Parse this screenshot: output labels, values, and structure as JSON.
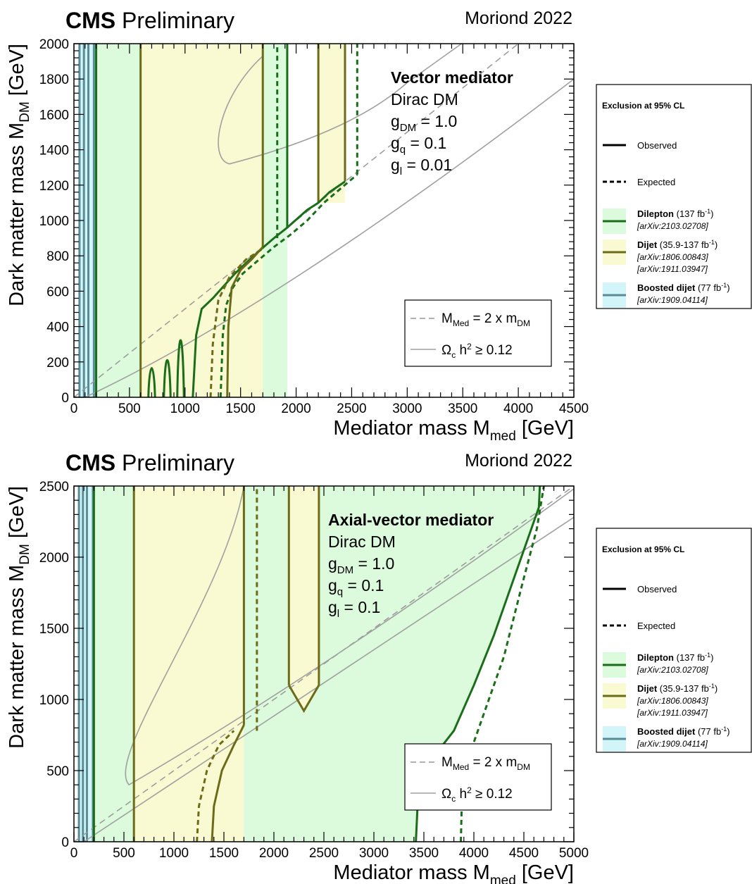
{
  "chart_data": [
    {
      "type": "line",
      "header": {
        "experiment": "CMS",
        "status": "Preliminary",
        "campaign": "Moriond 2022"
      },
      "xlabel": "Mediator mass M",
      "xlabel_sub": "med",
      "xlabel_unit": "[GeV]",
      "ylabel": "Dark matter mass M",
      "ylabel_sub": "DM",
      "ylabel_unit": "[GeV]",
      "xlim": [
        0,
        4500
      ],
      "ylim": [
        0,
        2000
      ],
      "x_ticks": [
        0,
        500,
        1000,
        1500,
        2000,
        2500,
        3000,
        3500,
        4000,
        4500
      ],
      "y_ticks": [
        0,
        200,
        400,
        600,
        800,
        1000,
        1200,
        1400,
        1600,
        1800,
        2000
      ],
      "info": {
        "title": "Vector mediator",
        "line1": "Dirac DM",
        "g_dm": "g",
        "g_dm_sub": "DM",
        "g_dm_val": "= 1.0",
        "g_q": "g",
        "g_q_sub": "q",
        "g_q_val": "= 0.1",
        "g_l": "g",
        "g_l_sub": "l",
        "g_l_val": "= 0.01"
      },
      "inner_legend": {
        "diag_label": "M",
        "diag_sub1": "Med",
        "diag_mid": "= 2 x m",
        "diag_sub2": "DM",
        "relic_label": "Ω",
        "relic_sub": "c",
        "relic_mid": "h",
        "relic_sup": "2",
        "relic_tail": "≥ 0.12"
      },
      "series": [
        {
          "name": "Dilepton observed",
          "style": "solid",
          "color": "#1a6e1a",
          "points": [
            [
              1070,
              0
            ],
            [
              1100,
              350
            ],
            [
              1150,
              500
            ],
            [
              1250,
              560
            ],
            [
              1350,
              630
            ],
            [
              1450,
              700
            ],
            [
              1550,
              760
            ],
            [
              1690,
              840
            ],
            [
              1800,
              900
            ],
            [
              1920,
              960
            ],
            [
              2100,
              1060
            ],
            [
              2200,
              1100
            ],
            [
              2300,
              1160
            ],
            [
              2440,
              1220
            ]
          ]
        },
        {
          "name": "Dilepton expected",
          "style": "dashed",
          "color": "#1a6e1a",
          "points": [
            [
              1320,
              0
            ],
            [
              1340,
              350
            ],
            [
              1370,
              520
            ],
            [
              1430,
              620
            ],
            [
              1520,
              700
            ],
            [
              1650,
              770
            ],
            [
              1800,
              850
            ],
            [
              1950,
              920
            ],
            [
              2100,
              1000
            ],
            [
              2250,
              1100
            ],
            [
              2400,
              1180
            ],
            [
              2550,
              1260
            ]
          ]
        },
        {
          "name": "Dijet observed",
          "style": "solid",
          "color": "#6b6b1a",
          "points": [
            [
              1380,
              0
            ],
            [
              1390,
              400
            ],
            [
              1420,
              620
            ],
            [
              1500,
              720
            ],
            [
              1600,
              780
            ],
            [
              1700,
              850
            ]
          ]
        },
        {
          "name": "Dijet expected",
          "style": "dashed",
          "color": "#6b6b1a",
          "points": [
            [
              1230,
              0
            ],
            [
              1250,
              300
            ],
            [
              1300,
              550
            ],
            [
              1400,
              680
            ],
            [
              1550,
              780
            ],
            [
              1700,
              840
            ]
          ]
        }
      ],
      "vertical_bounds": {
        "dilepton_obs": [
          200,
          1920
        ],
        "dilepton_exp": [
          1830,
          2550
        ],
        "dijet_obs": [
          600,
          1700,
          2200,
          2450
        ],
        "boosted_lines": [
          50,
          90,
          130,
          180
        ]
      }
    },
    {
      "type": "line",
      "header": {
        "experiment": "CMS",
        "status": "Preliminary",
        "campaign": "Moriond 2022"
      },
      "xlabel": "Mediator mass M",
      "xlabel_sub": "med",
      "xlabel_unit": "[GeV]",
      "ylabel": "Dark matter mass M",
      "ylabel_sub": "DM",
      "ylabel_unit": "[GeV]",
      "xlim": [
        0,
        5000
      ],
      "ylim": [
        0,
        2500
      ],
      "x_ticks": [
        0,
        500,
        1000,
        1500,
        2000,
        2500,
        3000,
        3500,
        4000,
        4500,
        5000
      ],
      "y_ticks": [
        0,
        500,
        1000,
        1500,
        2000,
        2500
      ],
      "info": {
        "title": "Axial-vector mediator",
        "line1": "Dirac DM",
        "g_dm": "g",
        "g_dm_sub": "DM",
        "g_dm_val": "= 1.0",
        "g_q": "g",
        "g_q_sub": "q",
        "g_q_val": "= 0.1",
        "g_l": "g",
        "g_l_sub": "l",
        "g_l_val": "= 0.1"
      },
      "inner_legend": {
        "diag_label": "M",
        "diag_sub1": "Med",
        "diag_mid": "= 2 x m",
        "diag_sub2": "DM",
        "relic_label": "Ω",
        "relic_sub": "c",
        "relic_mid": "h",
        "relic_sup": "2",
        "relic_tail": "≥ 0.12"
      },
      "series": [
        {
          "name": "Dilepton observed",
          "style": "solid",
          "color": "#1a6e1a",
          "points": [
            [
              3420,
              0
            ],
            [
              3440,
              300
            ],
            [
              3600,
              600
            ],
            [
              3800,
              780
            ],
            [
              4000,
              1100
            ],
            [
              4200,
              1450
            ],
            [
              4400,
              1850
            ],
            [
              4550,
              2150
            ],
            [
              4650,
              2350
            ],
            [
              4660,
              2500
            ]
          ]
        },
        {
          "name": "Dilepton expected",
          "style": "dashed",
          "color": "#1a6e1a",
          "points": [
            [
              3870,
              0
            ],
            [
              3880,
              300
            ],
            [
              3950,
              600
            ],
            [
              4100,
              900
            ],
            [
              4300,
              1300
            ],
            [
              4480,
              1800
            ],
            [
              4630,
              2200
            ],
            [
              4700,
              2500
            ]
          ]
        },
        {
          "name": "Dijet observed",
          "style": "solid",
          "color": "#6b6b1a",
          "points": [
            [
              1380,
              0
            ],
            [
              1400,
              250
            ],
            [
              1480,
              500
            ],
            [
              1600,
              680
            ],
            [
              1700,
              820
            ]
          ]
        },
        {
          "name": "Dijet expected",
          "style": "dashed",
          "color": "#6b6b1a",
          "points": [
            [
              1230,
              0
            ],
            [
              1250,
              250
            ],
            [
              1330,
              500
            ],
            [
              1450,
              680
            ],
            [
              1600,
              780
            ]
          ]
        }
      ],
      "vertical_bounds": {
        "dijet_obs": [
          600,
          1700,
          2150,
          2450
        ],
        "dijet_exp_right": 1830,
        "boosted_lines": [
          50,
          90,
          130,
          190
        ]
      },
      "dijet_notch": [
        [
          2150,
          1100
        ],
        [
          2300,
          920
        ],
        [
          2450,
          1100
        ]
      ]
    }
  ],
  "legend": {
    "title": "Exclusion at 95% CL",
    "observed": "Observed",
    "expected": "Expected",
    "dilepton": "Dilepton",
    "dilepton_lumi": "(137 fb",
    "dilepton_ref": "[arXiv:2103.02708]",
    "dijet": "Dijet",
    "dijet_lumi": "(35.9-137 fb",
    "dijet_ref1": "[arXiv:1806.00843]",
    "dijet_ref2": "[arXiv:1911.03947]",
    "boosted": "Boosted dijet",
    "boosted_lumi": "(77 fb",
    "boosted_ref": "[arXiv:1909.04114]",
    "inv_sup": "-1",
    "close_paren": ")"
  },
  "colors": {
    "dilepton_fill": "#dcfadc",
    "dijet_fill": "#fafad2",
    "boosted_fill": "#d2f5fa",
    "dilepton_line": "#1a6e1a",
    "dijet_line": "#6b6b1a",
    "boosted_line": "#5a8c96",
    "relic": "#a0a0a0"
  }
}
